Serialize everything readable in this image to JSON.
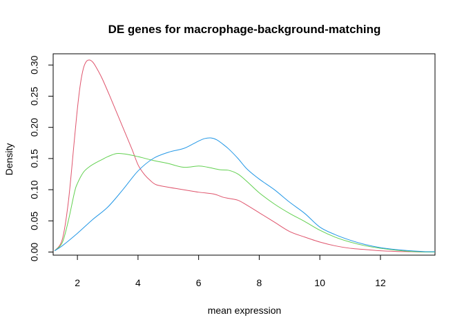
{
  "chart_data": {
    "type": "line",
    "title": "DE genes for macrophage-background-matching",
    "xlabel": "mean expression",
    "ylabel": "Density",
    "xlim": [
      1.2,
      13.8
    ],
    "ylim": [
      -0.005,
      0.318
    ],
    "xticks": [
      2,
      4,
      6,
      8,
      10,
      12
    ],
    "xtick_labels": [
      "2",
      "4",
      "6",
      "8",
      "10",
      "12"
    ],
    "yticks": [
      0.0,
      0.05,
      0.1,
      0.15,
      0.2,
      0.25,
      0.3
    ],
    "ytick_labels": [
      "0.00",
      "0.05",
      "0.10",
      "0.15",
      "0.20",
      "0.25",
      "0.30"
    ],
    "grid": false,
    "legend": "none",
    "series": [
      {
        "color": "#DF536B",
        "x": [
          1.25,
          1.5,
          1.7,
          1.9,
          2.0,
          2.1,
          2.2,
          2.3,
          2.4,
          2.5,
          2.6,
          2.8,
          3.0,
          3.2,
          3.5,
          3.8,
          4.0,
          4.2,
          4.4,
          4.6,
          5.0,
          5.5,
          6.0,
          6.5,
          6.8,
          7.0,
          7.3,
          7.6,
          8.0,
          8.5,
          9.0,
          9.5,
          10.0,
          10.5,
          11.0,
          11.5,
          12.0,
          12.5,
          13.0,
          13.5
        ],
        "y": [
          0.002,
          0.02,
          0.08,
          0.18,
          0.23,
          0.27,
          0.295,
          0.306,
          0.308,
          0.305,
          0.298,
          0.28,
          0.258,
          0.235,
          0.2,
          0.165,
          0.14,
          0.125,
          0.115,
          0.108,
          0.104,
          0.1,
          0.096,
          0.093,
          0.088,
          0.086,
          0.083,
          0.075,
          0.063,
          0.048,
          0.033,
          0.024,
          0.016,
          0.01,
          0.006,
          0.004,
          0.002,
          0.001,
          0.0005,
          0.0
        ]
      },
      {
        "color": "#61D04F",
        "x": [
          1.25,
          1.5,
          1.7,
          1.9,
          2.0,
          2.2,
          2.4,
          2.6,
          2.8,
          3.0,
          3.3,
          3.6,
          4.0,
          4.5,
          5.0,
          5.5,
          6.0,
          6.3,
          6.7,
          7.0,
          7.3,
          7.6,
          8.0,
          8.5,
          9.0,
          9.5,
          10.0,
          10.5,
          11.0,
          11.5,
          12.0,
          12.5,
          13.0,
          13.5
        ],
        "y": [
          0.002,
          0.015,
          0.05,
          0.095,
          0.11,
          0.128,
          0.137,
          0.143,
          0.148,
          0.153,
          0.158,
          0.157,
          0.153,
          0.147,
          0.142,
          0.136,
          0.138,
          0.136,
          0.132,
          0.131,
          0.125,
          0.113,
          0.095,
          0.077,
          0.062,
          0.049,
          0.035,
          0.024,
          0.016,
          0.01,
          0.006,
          0.003,
          0.001,
          0.0
        ]
      },
      {
        "color": "#2297E6",
        "x": [
          1.25,
          1.5,
          2.0,
          2.5,
          3.0,
          3.5,
          4.0,
          4.5,
          5.0,
          5.5,
          5.8,
          6.0,
          6.2,
          6.4,
          6.6,
          6.8,
          7.0,
          7.3,
          7.6,
          8.0,
          8.5,
          9.0,
          9.5,
          10.0,
          10.5,
          11.0,
          11.5,
          12.0,
          12.5,
          13.0,
          13.5
        ],
        "y": [
          0.002,
          0.01,
          0.03,
          0.052,
          0.072,
          0.1,
          0.13,
          0.15,
          0.16,
          0.166,
          0.173,
          0.178,
          0.182,
          0.183,
          0.18,
          0.173,
          0.165,
          0.15,
          0.133,
          0.117,
          0.1,
          0.08,
          0.062,
          0.04,
          0.028,
          0.019,
          0.012,
          0.007,
          0.004,
          0.002,
          0.0005
        ]
      }
    ]
  }
}
